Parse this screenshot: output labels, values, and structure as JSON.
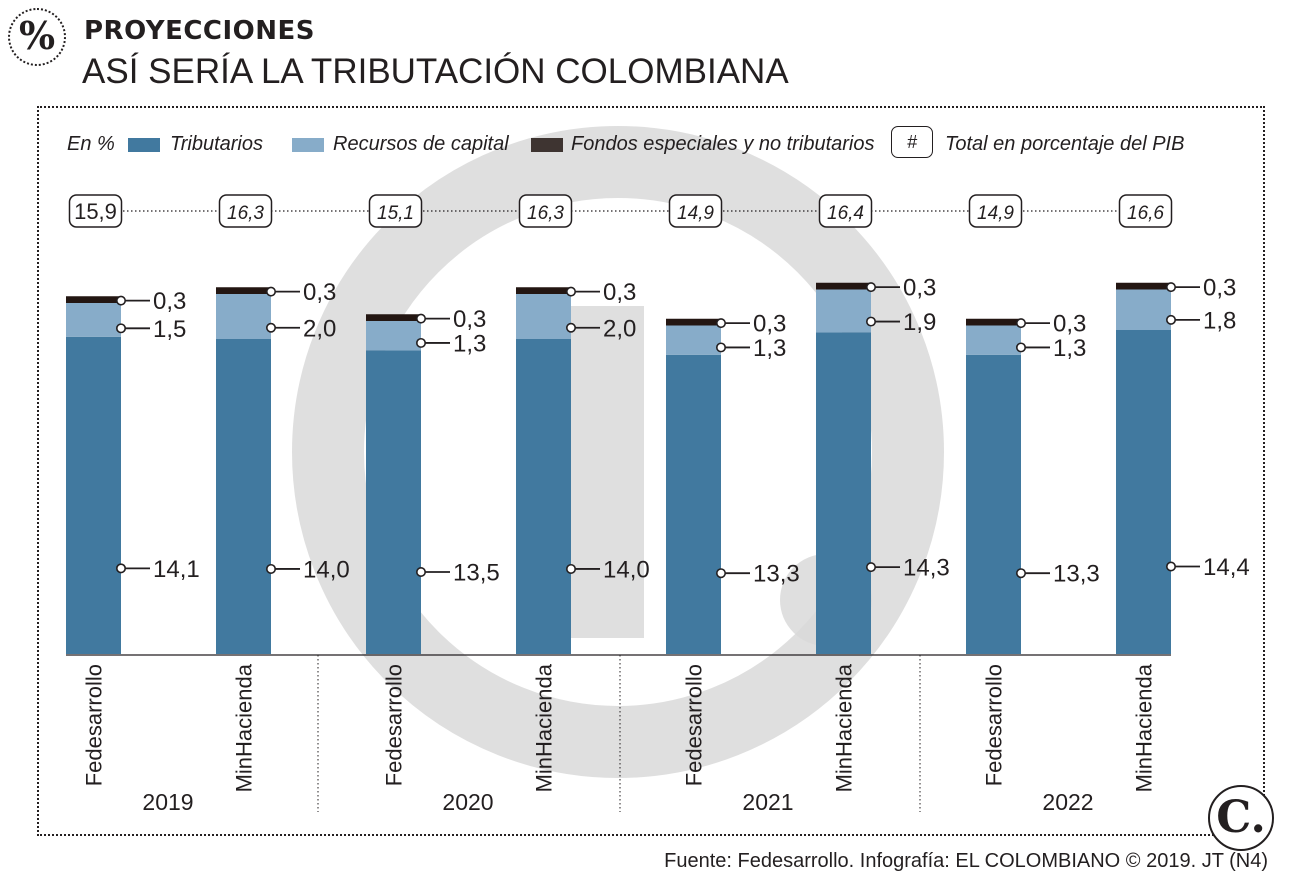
{
  "header": {
    "badge": "%",
    "kicker": "PROYECCIONES",
    "title": "ASÍ SERÍA LA TRIBUTACIÓN COLOMBIANA"
  },
  "legend": {
    "unit": "En %",
    "tributarios": "Tributarios",
    "recursos": "Recursos de capital",
    "fondos": "Fondos especiales y no tributarios",
    "hash": "#",
    "total": "Total en porcentaje del PIB"
  },
  "colors": {
    "tributarios": "#41799f",
    "recursos": "#87acc9",
    "fondos": "#231612",
    "text": "#231f20",
    "watermark": "#d9d9d9"
  },
  "chart_data": {
    "type": "bar",
    "stacked": true,
    "unit": "En %",
    "categories": [
      "Fedesarrollo",
      "MinHacienda",
      "Fedesarrollo",
      "MinHacienda",
      "Fedesarrollo",
      "MinHacienda",
      "Fedesarrollo",
      "MinHacienda"
    ],
    "groups": [
      "2019",
      "2020",
      "2021",
      "2022"
    ],
    "series": [
      {
        "name": "Tributarios",
        "values": [
          "14,1",
          "14,0",
          "13,5",
          "14,0",
          "13,3",
          "14,3",
          "13,3",
          "14,4"
        ]
      },
      {
        "name": "Recursos de capital",
        "values": [
          "1,5",
          "2,0",
          "1,3",
          "2,0",
          "1,3",
          "1,9",
          "1,3",
          "1,8"
        ]
      },
      {
        "name": "Fondos especiales y no tributarios",
        "values": [
          "0,3",
          "0,3",
          "0,3",
          "0,3",
          "0,3",
          "0,3",
          "0,3",
          "0,3"
        ]
      }
    ],
    "totals": [
      "15,9",
      "16,3",
      "15,1",
      "16,3",
      "14,9",
      "16,4",
      "14,9",
      "16,6"
    ]
  },
  "footer": {
    "source": "Fuente: Fedesarrollo. Infografía: EL COLOMBIANO © 2019. JT (N4)",
    "logo": "C."
  }
}
